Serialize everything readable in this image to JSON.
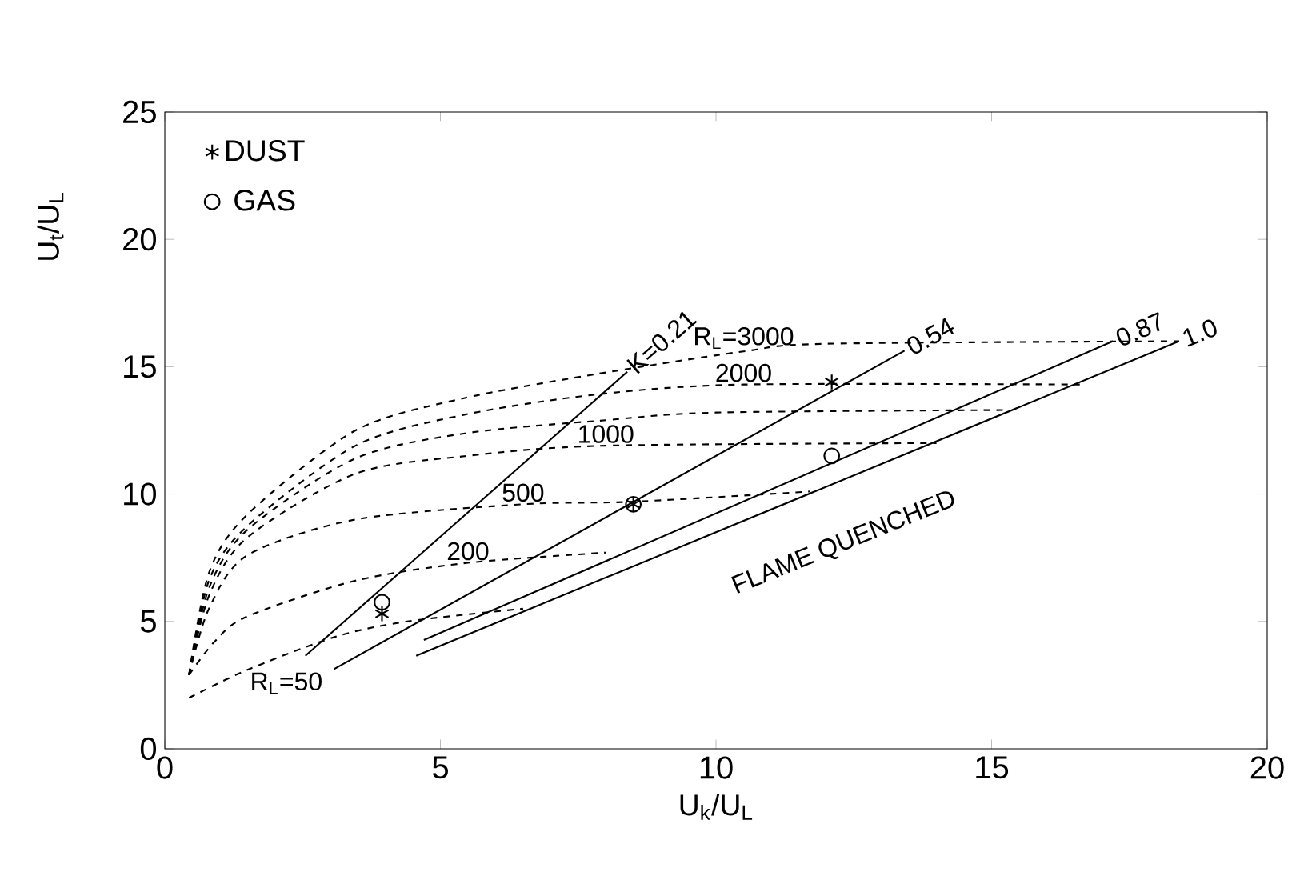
{
  "chart_data": {
    "type": "line",
    "xlabel": "U$_{k}$/U$_{L}$",
    "ylabel": "U$_{t}$/U$_{L}$",
    "xlim": [
      0,
      20
    ],
    "ylim": [
      0,
      25
    ],
    "xticks": [
      0,
      5,
      10,
      15,
      20
    ],
    "yticks": [
      0,
      5,
      10,
      15,
      20,
      25
    ],
    "legend": "top left",
    "marker": "none",
    "annotations": [
      "FLAME QUENCHED"
    ],
    "series": [
      {
        "name": "R$_{L}$=50",
        "color": "#000000",
        "line_style": "dashed",
        "x": [
          0.44,
          1.5,
          3.1,
          4.4,
          6.5
        ],
        "values": [
          2.0,
          3.1,
          4.4,
          5.0,
          5.5
        ]
      },
      {
        "name": "200",
        "color": "#000000",
        "line_style": "dashed",
        "x": [
          0.44,
          0.9,
          1.5,
          3.46,
          5.5,
          8.0
        ],
        "values": [
          2.9,
          4.2,
          5.2,
          6.6,
          7.3,
          7.7
        ]
      },
      {
        "name": "500",
        "color": "#000000",
        "line_style": "dashed",
        "x": [
          0.44,
          0.8,
          1.5,
          3.46,
          6.5,
          8.5,
          11.7
        ],
        "values": [
          2.9,
          5.5,
          7.6,
          9.0,
          9.6,
          9.7,
          10.1
        ]
      },
      {
        "name": "1000",
        "color": "#000000",
        "line_style": "dashed",
        "x": [
          0.44,
          0.8,
          1.5,
          3.46,
          5.5,
          8.0,
          14.0
        ],
        "values": [
          2.9,
          6.0,
          8.3,
          10.8,
          11.5,
          11.9,
          12.0
        ]
      },
      {
        "color": "#000000",
        "line_style": "dashed",
        "x": [
          0.44,
          0.8,
          1.5,
          3.46,
          5.5,
          8.0,
          10.0,
          15.3
        ],
        "values": [
          2.9,
          6.3,
          8.6,
          11.4,
          12.4,
          12.9,
          13.2,
          13.3
        ]
      },
      {
        "name": "2000",
        "color": "#000000",
        "line_style": "dashed",
        "x": [
          0.44,
          0.8,
          1.5,
          3.46,
          5.4,
          7.8,
          10.5,
          16.6
        ],
        "values": [
          2.9,
          6.6,
          8.75,
          11.9,
          13.1,
          13.9,
          14.3,
          14.3
        ]
      },
      {
        "name": "R$_{L}$=3000",
        "color": "#000000",
        "line_style": "dashed",
        "x": [
          0.44,
          0.8,
          1.5,
          3.46,
          5.4,
          7.8,
          10.5,
          12.0,
          18.4
        ],
        "values": [
          2.9,
          6.9,
          9.2,
          12.5,
          13.75,
          14.7,
          15.6,
          15.9,
          16.0
        ]
      },
      {
        "name": "K=0.21",
        "color": "#000000",
        "line_style": "solid",
        "x": [
          2.55,
          8.39
        ],
        "values": [
          3.65,
          14.8
        ]
      },
      {
        "name": "0.54",
        "color": "#000000",
        "line_style": "solid",
        "x": [
          3.07,
          13.42
        ],
        "values": [
          3.13,
          15.63
        ]
      },
      {
        "name": "0.87",
        "color": "#000000",
        "line_style": "solid",
        "x": [
          4.7,
          17.2
        ],
        "values": [
          4.27,
          16.0
        ]
      },
      {
        "name": "1.0",
        "color": "#000000",
        "line_style": "solid",
        "x": [
          4.56,
          18.4
        ],
        "values": [
          3.65,
          16.0
        ]
      },
      {
        "name": "DUST",
        "type": "scatter",
        "marker": "cross",
        "color": "#000000",
        "x": [
          3.94,
          8.5,
          12.1
        ],
        "values": [
          5.3,
          9.6,
          14.4
        ]
      },
      {
        "name": "GAS",
        "type": "scatter",
        "marker": "circle",
        "color": "#000000",
        "x": [
          3.94,
          8.5,
          12.1
        ],
        "values": [
          5.75,
          9.6,
          11.5
        ]
      }
    ]
  }
}
